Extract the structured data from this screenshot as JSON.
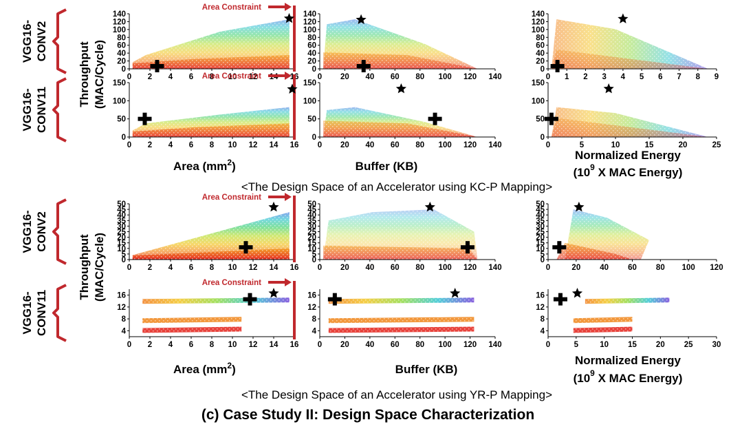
{
  "figure_title": "(c) Case Study II: Design Space Characterization",
  "colors": {
    "constraint": "#c0282d",
    "bracket": "#c0282d",
    "marker": "#000000"
  },
  "y_axis_label_line1": "Throughput",
  "y_axis_label_line2": "(MAC/Cycle)",
  "area_constraint_label": "Area Constraint",
  "x_labels": {
    "area_prefix": "Area (mm",
    "area_sup": "2",
    "area_suffix": ")",
    "buffer": "Buffer (KB)",
    "energy_line1": "Normalized Energy",
    "energy_line2_prefix": "(10",
    "energy_line2_sup": "9",
    "energy_line2_suffix": " X MAC Energy)"
  },
  "chart_data": [
    {
      "type": "scatter",
      "section": "<The Design Space of an Accelerator using KC-P Mapping>",
      "rows": [
        {
          "label_line1": "VGG16-",
          "label_line2": "CONV2",
          "ylim": [
            0,
            140
          ],
          "yticks": [
            0,
            20,
            40,
            60,
            80,
            100,
            120,
            140
          ],
          "shape": "kc_conv2",
          "panels": [
            {
              "x": "area",
              "xlim": [
                0,
                16
              ],
              "xticks": [
                0,
                2,
                4,
                6,
                8,
                10,
                12,
                14,
                16
              ],
              "star": [
                15.5,
                128
              ],
              "cross": [
                2.7,
                7
              ],
              "constraint_x": 16
            },
            {
              "x": "buffer",
              "xlim": [
                0,
                140
              ],
              "xticks": [
                0,
                20,
                40,
                60,
                80,
                100,
                120,
                140
              ],
              "star": [
                33,
                125
              ],
              "cross": [
                35,
                7
              ]
            },
            {
              "x": "energy",
              "xlim": [
                0,
                9
              ],
              "xticks": [
                0,
                1,
                2,
                3,
                4,
                5,
                6,
                7,
                8,
                9
              ],
              "star": [
                4,
                127
              ],
              "cross": [
                0.5,
                7
              ]
            }
          ]
        },
        {
          "label_line1": "VGG16-",
          "label_line2": "CONV11",
          "ylim": [
            0,
            150
          ],
          "yticks": [
            0,
            50,
            100,
            150
          ],
          "shape": "kc_conv11",
          "panels": [
            {
              "x": "area",
              "xlim": [
                0,
                16
              ],
              "xticks": [
                0,
                2,
                4,
                6,
                8,
                10,
                12,
                14,
                16
              ],
              "star": [
                15.8,
                132
              ],
              "cross": [
                1.5,
                50
              ],
              "constraint_x": 16
            },
            {
              "x": "buffer",
              "xlim": [
                0,
                140
              ],
              "xticks": [
                0,
                20,
                40,
                60,
                80,
                100,
                120,
                140
              ],
              "star": [
                65,
                133
              ],
              "cross": [
                92,
                50
              ]
            },
            {
              "x": "energy",
              "xlim": [
                0,
                25
              ],
              "xticks": [
                0,
                5,
                10,
                15,
                20,
                25
              ],
              "star": [
                9,
                133
              ],
              "cross": [
                0.5,
                50
              ]
            }
          ]
        }
      ]
    },
    {
      "type": "scatter",
      "section": "<The Design Space of an Accelerator using YR-P Mapping>",
      "rows": [
        {
          "label_line1": "VGG16-",
          "label_line2": "CONV2",
          "ylim": [
            0,
            50
          ],
          "yticks": [
            0,
            5,
            10,
            15,
            20,
            25,
            30,
            35,
            40,
            45,
            50
          ],
          "shape": "yr_conv2",
          "panels": [
            {
              "x": "area",
              "xlim": [
                0,
                16
              ],
              "xticks": [
                0,
                2,
                4,
                6,
                8,
                10,
                12,
                14,
                16
              ],
              "star": [
                14,
                47
              ],
              "cross": [
                11.3,
                11
              ],
              "constraint_x": 16
            },
            {
              "x": "buffer",
              "xlim": [
                0,
                140
              ],
              "xticks": [
                0,
                20,
                40,
                60,
                80,
                100,
                120,
                140
              ],
              "star": [
                88,
                47
              ],
              "cross": [
                118,
                11
              ]
            },
            {
              "x": "energy",
              "xlim": [
                0,
                120
              ],
              "xticks": [
                0,
                20,
                40,
                60,
                80,
                100,
                120
              ],
              "star": [
                22,
                47
              ],
              "cross": [
                8,
                11
              ]
            }
          ]
        },
        {
          "label_line1": "VGG16-",
          "label_line2": "CONV11",
          "ylim": [
            2,
            18
          ],
          "yticks": [
            4,
            8,
            12,
            16
          ],
          "shape": "yr_conv11",
          "panels": [
            {
              "x": "area",
              "xlim": [
                0,
                16
              ],
              "xticks": [
                0,
                2,
                4,
                6,
                8,
                10,
                12,
                14,
                16
              ],
              "star": [
                14,
                16.6
              ],
              "cross": [
                11.7,
                14.6
              ],
              "constraint_x": 16
            },
            {
              "x": "buffer",
              "xlim": [
                0,
                140
              ],
              "xticks": [
                0,
                20,
                40,
                60,
                80,
                100,
                120,
                140
              ],
              "star": [
                108,
                16.6
              ],
              "cross": [
                12,
                14.6
              ]
            },
            {
              "x": "energy",
              "xlim": [
                0,
                30
              ],
              "xticks": [
                0,
                5,
                10,
                15,
                20,
                25,
                30
              ],
              "star": [
                5.2,
                16.6
              ],
              "cross": [
                2.2,
                14.6
              ]
            }
          ]
        }
      ]
    }
  ]
}
